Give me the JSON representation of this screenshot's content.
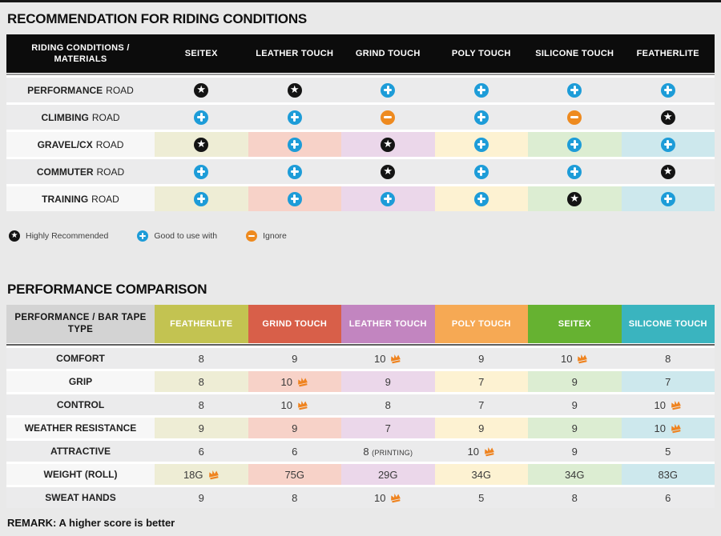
{
  "colors": {
    "page_bg": "#e9e9e9",
    "top_strip": "#161616",
    "t1_header_bg": "#0c0c0c",
    "row_gray": "#ebebec",
    "tinted_label_bg": "#f7f7f7",
    "column_tints": [
      "#eeedd5",
      "#f7d2c8",
      "#ebd7ea",
      "#fdf2d2",
      "#dcedd2",
      "#cde8ed"
    ],
    "icon_plus": "#1d9cd8",
    "icon_minus": "#ee8a1f",
    "icon_star": "#141414",
    "crown": "#ef831f"
  },
  "section1": {
    "title": "RECOMMENDATION FOR RIDING CONDITIONS",
    "table": {
      "corner": "RIDING CONDITIONS / MATERIALS",
      "columns": [
        "SEITEX",
        "LEATHER TOUCH",
        "GRIND TOUCH",
        "POLY TOUCH",
        "SILICONE TOUCH",
        "FEATHERLITE"
      ],
      "rows": [
        {
          "label_bold": "PERFORMANCE",
          "label_rest": "ROAD",
          "tinted": false,
          "cells": [
            "star",
            "star",
            "plus",
            "plus",
            "plus",
            "plus"
          ]
        },
        {
          "label_bold": "CLIMBING",
          "label_rest": "ROAD",
          "tinted": false,
          "cells": [
            "plus",
            "plus",
            "minus",
            "plus",
            "minus",
            "star"
          ]
        },
        {
          "label_bold": "GRAVEL/CX",
          "label_rest": "ROAD",
          "tinted": true,
          "cells": [
            "star",
            "plus",
            "star",
            "plus",
            "plus",
            "plus"
          ]
        },
        {
          "label_bold": "COMMUTER",
          "label_rest": "ROAD",
          "tinted": false,
          "cells": [
            "plus",
            "plus",
            "star",
            "plus",
            "plus",
            "star"
          ]
        },
        {
          "label_bold": "TRAINING",
          "label_rest": "ROAD",
          "tinted": true,
          "cells": [
            "plus",
            "plus",
            "plus",
            "plus",
            "star",
            "plus"
          ]
        }
      ]
    },
    "legend": [
      {
        "icon": "star",
        "label": "Highly Recommended"
      },
      {
        "icon": "plus",
        "label": "Good to use with"
      },
      {
        "icon": "minus",
        "label": "Ignore"
      }
    ]
  },
  "section2": {
    "title": "PERFORMANCE COMPARISON",
    "table": {
      "corner": "PERFORMANCE / BAR TAPE TYPE",
      "columns": [
        {
          "label": "FEATHERLITE",
          "color": "#c3c351"
        },
        {
          "label": "GRIND TOUCH",
          "color": "#d85f49"
        },
        {
          "label": "LEATHER TOUCH",
          "color": "#c285c0"
        },
        {
          "label": "POLY TOUCH",
          "color": "#f6a954"
        },
        {
          "label": "SEITEX",
          "color": "#66b231"
        },
        {
          "label": "SILICONE TOUCH",
          "color": "#3ab4bf"
        }
      ],
      "rows": [
        {
          "label": "COMFORT",
          "tinted": false,
          "cells": [
            {
              "v": "8"
            },
            {
              "v": "9"
            },
            {
              "v": "10",
              "crown": true
            },
            {
              "v": "9"
            },
            {
              "v": "10",
              "crown": true
            },
            {
              "v": "8"
            }
          ]
        },
        {
          "label": "GRIP",
          "tinted": true,
          "cells": [
            {
              "v": "8"
            },
            {
              "v": "10",
              "crown": true
            },
            {
              "v": "9"
            },
            {
              "v": "7"
            },
            {
              "v": "9"
            },
            {
              "v": "7"
            }
          ]
        },
        {
          "label": "CONTROL",
          "tinted": false,
          "cells": [
            {
              "v": "8"
            },
            {
              "v": "10",
              "crown": true
            },
            {
              "v": "8"
            },
            {
              "v": "7"
            },
            {
              "v": "9"
            },
            {
              "v": "10",
              "crown": true
            }
          ]
        },
        {
          "label": "WEATHER RESISTANCE",
          "tinted": true,
          "cells": [
            {
              "v": "9"
            },
            {
              "v": "9"
            },
            {
              "v": "7"
            },
            {
              "v": "9"
            },
            {
              "v": "9"
            },
            {
              "v": "10",
              "crown": true
            }
          ]
        },
        {
          "label": "ATTRACTIVE",
          "tinted": false,
          "cells": [
            {
              "v": "6"
            },
            {
              "v": "6"
            },
            {
              "v": "8",
              "suffix": "(PRINTING)"
            },
            {
              "v": "10",
              "crown": true
            },
            {
              "v": "9"
            },
            {
              "v": "5"
            }
          ]
        },
        {
          "label": "WEIGHT (ROLL)",
          "tinted": true,
          "cells": [
            {
              "v": "18G",
              "crown": true
            },
            {
              "v": "75G"
            },
            {
              "v": "29G"
            },
            {
              "v": "34G"
            },
            {
              "v": "34G"
            },
            {
              "v": "83G"
            }
          ]
        },
        {
          "label": "SWEAT HANDS",
          "tinted": false,
          "cells": [
            {
              "v": "9"
            },
            {
              "v": "8"
            },
            {
              "v": "10",
              "crown": true
            },
            {
              "v": "5"
            },
            {
              "v": "8"
            },
            {
              "v": "6"
            }
          ]
        }
      ]
    },
    "remark": "REMARK: A higher score is better"
  }
}
